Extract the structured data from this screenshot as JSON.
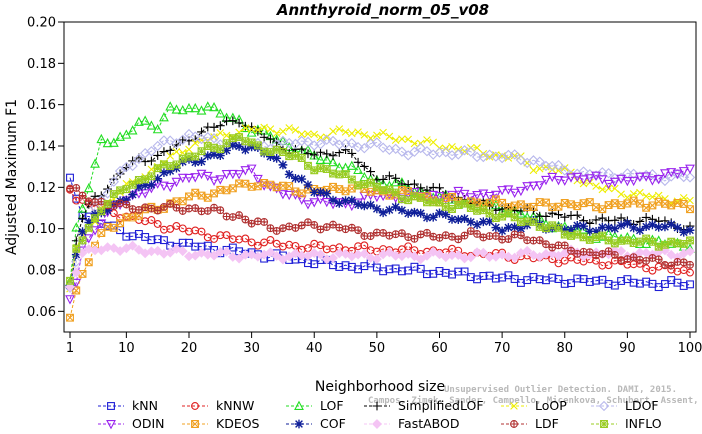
{
  "chart_data": {
    "type": "line",
    "title": "Annthyroid_norm_05_v08",
    "xlabel": "Neighborhood size",
    "ylabel": "Adjusted Maximum F1",
    "xlim": [
      1,
      100
    ],
    "ylim": [
      0.05,
      0.2
    ],
    "xticks": [
      1,
      10,
      20,
      30,
      40,
      50,
      60,
      70,
      80,
      90,
      100
    ],
    "yticks": [
      0.06,
      0.08,
      0.1,
      0.12,
      0.14,
      0.16,
      0.18,
      0.2
    ],
    "ytick_labels": [
      "0.06",
      "0.08",
      "0.10",
      "0.12",
      "0.14",
      "0.16",
      "0.18",
      "0.20"
    ],
    "grid": false,
    "legend_position": "bottom",
    "watermark": [
      "Unsupervised Outlier Detection. DAMI, 2015.",
      "Campos, Zimek, Sander, Campello, Micenkova, Schubert, Assent, Houle"
    ],
    "series": [
      {
        "name": "kNN",
        "color": "#1f1fd6",
        "marker": "square",
        "kp": [
          [
            1,
            0.123
          ],
          [
            2,
            0.115
          ],
          [
            3,
            0.108
          ],
          [
            5,
            0.104
          ],
          [
            8,
            0.1
          ],
          [
            10,
            0.098
          ],
          [
            15,
            0.094
          ],
          [
            20,
            0.092
          ],
          [
            25,
            0.09
          ],
          [
            30,
            0.088
          ],
          [
            35,
            0.086
          ],
          [
            40,
            0.084
          ],
          [
            45,
            0.082
          ],
          [
            50,
            0.081
          ],
          [
            60,
            0.079
          ],
          [
            70,
            0.076
          ],
          [
            80,
            0.075
          ],
          [
            90,
            0.074
          ],
          [
            100,
            0.073
          ]
        ]
      },
      {
        "name": "kNNW",
        "color": "#e02020",
        "marker": "circle",
        "kp": [
          [
            1,
            0.12
          ],
          [
            2,
            0.115
          ],
          [
            4,
            0.112
          ],
          [
            6,
            0.11
          ],
          [
            8,
            0.108
          ],
          [
            10,
            0.106
          ],
          [
            15,
            0.102
          ],
          [
            20,
            0.099
          ],
          [
            25,
            0.096
          ],
          [
            30,
            0.094
          ],
          [
            35,
            0.092
          ],
          [
            40,
            0.091
          ],
          [
            50,
            0.09
          ],
          [
            60,
            0.089
          ],
          [
            70,
            0.087
          ],
          [
            80,
            0.085
          ],
          [
            90,
            0.083
          ],
          [
            100,
            0.079
          ]
        ]
      },
      {
        "name": "LOF",
        "color": "#22dd22",
        "marker": "triangle-up",
        "kp": [
          [
            1,
            0.075
          ],
          [
            2,
            0.1
          ],
          [
            3,
            0.11
          ],
          [
            4,
            0.12
          ],
          [
            5,
            0.13
          ],
          [
            6,
            0.142
          ],
          [
            8,
            0.143
          ],
          [
            10,
            0.145
          ],
          [
            12,
            0.151
          ],
          [
            15,
            0.15
          ],
          [
            17,
            0.158
          ],
          [
            20,
            0.157
          ],
          [
            23,
            0.16
          ],
          [
            25,
            0.155
          ],
          [
            28,
            0.152
          ],
          [
            30,
            0.148
          ],
          [
            33,
            0.145
          ],
          [
            36,
            0.14
          ],
          [
            40,
            0.135
          ],
          [
            45,
            0.13
          ],
          [
            50,
            0.123
          ],
          [
            55,
            0.12
          ],
          [
            60,
            0.115
          ],
          [
            65,
            0.112
          ],
          [
            70,
            0.11
          ],
          [
            75,
            0.105
          ],
          [
            80,
            0.1
          ],
          [
            85,
            0.097
          ],
          [
            90,
            0.095
          ],
          [
            95,
            0.093
          ],
          [
            100,
            0.092
          ]
        ]
      },
      {
        "name": "SimplifiedLOF",
        "color": "#000000",
        "marker": "plus",
        "kp": [
          [
            1,
            0.072
          ],
          [
            2,
            0.095
          ],
          [
            3,
            0.105
          ],
          [
            5,
            0.115
          ],
          [
            7,
            0.12
          ],
          [
            10,
            0.13
          ],
          [
            12,
            0.133
          ],
          [
            15,
            0.135
          ],
          [
            18,
            0.14
          ],
          [
            20,
            0.143
          ],
          [
            22,
            0.147
          ],
          [
            25,
            0.15
          ],
          [
            28,
            0.153
          ],
          [
            30,
            0.148
          ],
          [
            33,
            0.143
          ],
          [
            36,
            0.138
          ],
          [
            40,
            0.136
          ],
          [
            43,
            0.137
          ],
          [
            46,
            0.136
          ],
          [
            48,
            0.13
          ],
          [
            50,
            0.125
          ],
          [
            55,
            0.122
          ],
          [
            60,
            0.118
          ],
          [
            65,
            0.113
          ],
          [
            70,
            0.11
          ],
          [
            75,
            0.108
          ],
          [
            80,
            0.106
          ],
          [
            85,
            0.104
          ],
          [
            90,
            0.104
          ],
          [
            95,
            0.104
          ],
          [
            100,
            0.1
          ]
        ]
      },
      {
        "name": "LoOP",
        "color": "#eeee00",
        "marker": "x",
        "kp": [
          [
            1,
            0.072
          ],
          [
            2,
            0.09
          ],
          [
            4,
            0.1
          ],
          [
            6,
            0.11
          ],
          [
            8,
            0.115
          ],
          [
            10,
            0.12
          ],
          [
            15,
            0.13
          ],
          [
            20,
            0.14
          ],
          [
            25,
            0.145
          ],
          [
            30,
            0.148
          ],
          [
            35,
            0.148
          ],
          [
            40,
            0.145
          ],
          [
            45,
            0.147
          ],
          [
            50,
            0.145
          ],
          [
            55,
            0.143
          ],
          [
            60,
            0.14
          ],
          [
            65,
            0.138
          ],
          [
            70,
            0.135
          ],
          [
            72,
            0.135
          ],
          [
            75,
            0.13
          ],
          [
            80,
            0.128
          ],
          [
            85,
            0.12
          ],
          [
            90,
            0.117
          ],
          [
            95,
            0.115
          ],
          [
            100,
            0.113
          ]
        ]
      },
      {
        "name": "LDOF",
        "color": "#b8b8ec",
        "marker": "diamond",
        "kp": [
          [
            1,
            0.07
          ],
          [
            3,
            0.095
          ],
          [
            5,
            0.11
          ],
          [
            8,
            0.122
          ],
          [
            10,
            0.13
          ],
          [
            15,
            0.14
          ],
          [
            20,
            0.145
          ],
          [
            25,
            0.142
          ],
          [
            30,
            0.14
          ],
          [
            40,
            0.142
          ],
          [
            50,
            0.14
          ],
          [
            55,
            0.137
          ],
          [
            60,
            0.137
          ],
          [
            65,
            0.136
          ],
          [
            70,
            0.135
          ],
          [
            75,
            0.133
          ],
          [
            80,
            0.128
          ],
          [
            85,
            0.126
          ],
          [
            90,
            0.126
          ],
          [
            95,
            0.125
          ],
          [
            100,
            0.125
          ]
        ]
      },
      {
        "name": "ODIN",
        "color": "#9922ee",
        "marker": "triangle-down",
        "kp": [
          [
            1,
            0.065
          ],
          [
            2,
            0.075
          ],
          [
            3,
            0.09
          ],
          [
            5,
            0.1
          ],
          [
            8,
            0.11
          ],
          [
            10,
            0.115
          ],
          [
            15,
            0.12
          ],
          [
            20,
            0.125
          ],
          [
            25,
            0.125
          ],
          [
            30,
            0.128
          ],
          [
            33,
            0.12
          ],
          [
            35,
            0.117
          ],
          [
            40,
            0.113
          ],
          [
            45,
            0.112
          ],
          [
            50,
            0.116
          ],
          [
            60,
            0.116
          ],
          [
            70,
            0.117
          ],
          [
            80,
            0.125
          ],
          [
            90,
            0.123
          ],
          [
            100,
            0.128
          ]
        ]
      },
      {
        "name": "KDEOS",
        "color": "#f0a020",
        "marker": "square-x",
        "kp": [
          [
            1,
            0.058
          ],
          [
            2,
            0.07
          ],
          [
            3,
            0.078
          ],
          [
            5,
            0.092
          ],
          [
            7,
            0.1
          ],
          [
            10,
            0.105
          ],
          [
            15,
            0.11
          ],
          [
            20,
            0.115
          ],
          [
            25,
            0.118
          ],
          [
            30,
            0.122
          ],
          [
            35,
            0.12
          ],
          [
            40,
            0.118
          ],
          [
            45,
            0.12
          ],
          [
            50,
            0.118
          ],
          [
            55,
            0.117
          ],
          [
            60,
            0.114
          ],
          [
            65,
            0.113
          ],
          [
            70,
            0.112
          ],
          [
            75,
            0.111
          ],
          [
            80,
            0.112
          ],
          [
            85,
            0.111
          ],
          [
            90,
            0.112
          ],
          [
            95,
            0.112
          ],
          [
            100,
            0.111
          ]
        ]
      },
      {
        "name": "COF",
        "color": "#0f1f99",
        "marker": "star",
        "kp": [
          [
            1,
            0.072
          ],
          [
            2,
            0.088
          ],
          [
            3,
            0.1
          ],
          [
            5,
            0.105
          ],
          [
            7,
            0.11
          ],
          [
            10,
            0.115
          ],
          [
            13,
            0.12
          ],
          [
            15,
            0.125
          ],
          [
            18,
            0.13
          ],
          [
            20,
            0.132
          ],
          [
            23,
            0.135
          ],
          [
            25,
            0.136
          ],
          [
            28,
            0.14
          ],
          [
            30,
            0.14
          ],
          [
            33,
            0.135
          ],
          [
            36,
            0.128
          ],
          [
            40,
            0.118
          ],
          [
            45,
            0.113
          ],
          [
            50,
            0.11
          ],
          [
            55,
            0.108
          ],
          [
            60,
            0.106
          ],
          [
            65,
            0.104
          ],
          [
            70,
            0.1
          ],
          [
            75,
            0.102
          ],
          [
            80,
            0.1
          ],
          [
            85,
            0.1
          ],
          [
            90,
            0.101
          ],
          [
            95,
            0.101
          ],
          [
            100,
            0.1
          ]
        ]
      },
      {
        "name": "FastABOD",
        "color": "#f4c4f4",
        "marker": "diamond-filled",
        "kp": [
          [
            1,
            0.073
          ],
          [
            3,
            0.087
          ],
          [
            5,
            0.09
          ],
          [
            8,
            0.091
          ],
          [
            10,
            0.09
          ],
          [
            15,
            0.089
          ],
          [
            20,
            0.088
          ],
          [
            30,
            0.087
          ],
          [
            40,
            0.087
          ],
          [
            50,
            0.087
          ],
          [
            60,
            0.087
          ],
          [
            70,
            0.087
          ],
          [
            80,
            0.088
          ],
          [
            90,
            0.088
          ],
          [
            100,
            0.088
          ]
        ]
      },
      {
        "name": "LDF",
        "color": "#b03030",
        "marker": "circle-plus",
        "kp": [
          [
            1,
            0.12
          ],
          [
            2,
            0.118
          ],
          [
            3,
            0.115
          ],
          [
            5,
            0.113
          ],
          [
            8,
            0.112
          ],
          [
            10,
            0.11
          ],
          [
            15,
            0.11
          ],
          [
            20,
            0.11
          ],
          [
            25,
            0.108
          ],
          [
            28,
            0.106
          ],
          [
            30,
            0.103
          ],
          [
            35,
            0.1
          ],
          [
            40,
            0.102
          ],
          [
            45,
            0.1
          ],
          [
            50,
            0.097
          ],
          [
            55,
            0.097
          ],
          [
            60,
            0.096
          ],
          [
            65,
            0.097
          ],
          [
            70,
            0.096
          ],
          [
            75,
            0.095
          ],
          [
            80,
            0.09
          ],
          [
            85,
            0.088
          ],
          [
            90,
            0.086
          ],
          [
            95,
            0.084
          ],
          [
            100,
            0.083
          ]
        ]
      },
      {
        "name": "INFLO",
        "color": "#99cc22",
        "marker": "square-star",
        "kp": [
          [
            1,
            0.073
          ],
          [
            2,
            0.09
          ],
          [
            4,
            0.1
          ],
          [
            6,
            0.11
          ],
          [
            8,
            0.115
          ],
          [
            10,
            0.12
          ],
          [
            15,
            0.128
          ],
          [
            20,
            0.135
          ],
          [
            25,
            0.14
          ],
          [
            28,
            0.145
          ],
          [
            30,
            0.14
          ],
          [
            35,
            0.137
          ],
          [
            40,
            0.13
          ],
          [
            45,
            0.125
          ],
          [
            50,
            0.12
          ],
          [
            55,
            0.115
          ],
          [
            60,
            0.112
          ],
          [
            65,
            0.11
          ],
          [
            70,
            0.106
          ],
          [
            75,
            0.103
          ],
          [
            80,
            0.098
          ],
          [
            85,
            0.095
          ],
          [
            90,
            0.094
          ],
          [
            95,
            0.093
          ],
          [
            100,
            0.093
          ]
        ]
      }
    ]
  }
}
